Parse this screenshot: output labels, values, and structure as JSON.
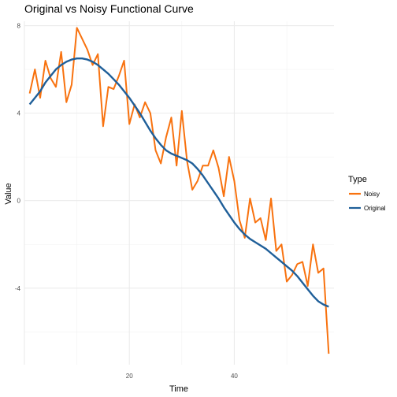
{
  "chart_data": {
    "type": "line",
    "title": "Original vs Noisy Functional Curve",
    "xlabel": "Time",
    "ylabel": "Value",
    "xlim": [
      0,
      59
    ],
    "ylim": [
      -7.5,
      8.2
    ],
    "x_ticks": [
      20,
      40
    ],
    "x_tick_labels": [
      "20",
      "40"
    ],
    "y_ticks": [
      8,
      4,
      0,
      -4
    ],
    "y_tick_labels": [
      "8",
      "4",
      "0",
      "-4"
    ],
    "grid": true,
    "legend": {
      "title": "Type",
      "placement": "right",
      "items": [
        "Noisy",
        "Original"
      ]
    },
    "colors": {
      "Noisy": "#F8720F",
      "Original": "#1F5F99"
    },
    "x": [
      1,
      2,
      3,
      4,
      5,
      6,
      7,
      8,
      9,
      10,
      11,
      12,
      13,
      14,
      15,
      16,
      17,
      18,
      19,
      20,
      21,
      22,
      23,
      24,
      25,
      26,
      27,
      28,
      29,
      30,
      31,
      32,
      33,
      34,
      35,
      36,
      37,
      38,
      39,
      40,
      41,
      42,
      43,
      44,
      45,
      46,
      47,
      48,
      49,
      50,
      51,
      52,
      53,
      54,
      55,
      56,
      57,
      58
    ],
    "series": [
      {
        "name": "Noisy",
        "values": [
          4.9,
          6.0,
          4.7,
          6.4,
          5.6,
          5.2,
          6.8,
          4.5,
          5.3,
          7.9,
          7.4,
          6.9,
          6.2,
          6.7,
          3.4,
          5.2,
          5.1,
          5.7,
          6.4,
          3.5,
          4.4,
          3.8,
          4.5,
          4.0,
          2.3,
          1.7,
          2.9,
          3.8,
          1.6,
          4.1,
          1.8,
          0.5,
          0.9,
          1.6,
          1.6,
          2.3,
          1.5,
          0.2,
          2.0,
          0.9,
          -0.9,
          -1.7,
          0.1,
          -1.0,
          -0.8,
          -1.8,
          0.1,
          -2.3,
          -2.0,
          -3.7,
          -3.4,
          -2.9,
          -2.8,
          -3.9,
          -2.0,
          -3.3,
          -3.1,
          -7.0
        ]
      },
      {
        "name": "Original",
        "values": [
          4.4,
          4.7,
          5.0,
          5.4,
          5.7,
          6.0,
          6.2,
          6.35,
          6.45,
          6.5,
          6.5,
          6.45,
          6.35,
          6.2,
          6.0,
          5.8,
          5.55,
          5.3,
          5.0,
          4.7,
          4.35,
          4.0,
          3.6,
          3.2,
          2.85,
          2.55,
          2.3,
          2.15,
          2.05,
          1.95,
          1.85,
          1.7,
          1.45,
          1.15,
          0.8,
          0.45,
          0.1,
          -0.3,
          -0.65,
          -1.0,
          -1.3,
          -1.55,
          -1.75,
          -1.9,
          -2.05,
          -2.2,
          -2.4,
          -2.6,
          -2.8,
          -3.0,
          -3.2,
          -3.45,
          -3.75,
          -4.05,
          -4.35,
          -4.6,
          -4.75,
          -4.85
        ]
      }
    ]
  }
}
